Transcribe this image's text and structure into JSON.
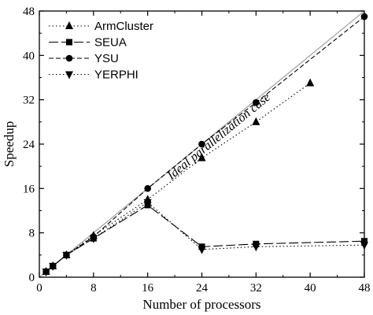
{
  "chart_data": {
    "type": "line",
    "xlabel": "Number of processors",
    "ylabel": "Speedup",
    "xlim": [
      0,
      48
    ],
    "ylim": [
      0,
      48
    ],
    "xticks": [
      0,
      8,
      16,
      24,
      32,
      40,
      48
    ],
    "yticks": [
      0,
      8,
      16,
      24,
      32,
      40,
      48
    ],
    "grid": false,
    "legend_position": "top-left",
    "annotation": "Ideal parallelization case",
    "ideal_line": {
      "x": [
        0,
        48
      ],
      "y": [
        0,
        48
      ],
      "color": "#aaaaaa"
    },
    "series": [
      {
        "name": "ArmCluster",
        "marker": "triangle-up",
        "dash": "dotted",
        "x": [
          1,
          2,
          4,
          8,
          16,
          24,
          32,
          40
        ],
        "y": [
          1,
          2,
          4,
          7.5,
          14,
          21.5,
          28,
          35
        ]
      },
      {
        "name": "SEUA",
        "marker": "square",
        "dash": "long-dash",
        "x": [
          1,
          2,
          4,
          8,
          16,
          24,
          32,
          48
        ],
        "y": [
          1,
          2,
          4,
          7,
          13,
          5.5,
          6,
          6.5
        ]
      },
      {
        "name": "YSU",
        "marker": "circle",
        "dash": "dashed",
        "x": [
          1,
          2,
          4,
          8,
          16,
          24,
          32,
          48
        ],
        "y": [
          1,
          2,
          4,
          7.3,
          16,
          24,
          31.5,
          47
        ]
      },
      {
        "name": "YERPHI",
        "marker": "triangle-down",
        "dash": "dotted",
        "x": [
          1,
          2,
          4,
          8,
          16,
          24,
          32,
          48
        ],
        "y": [
          1,
          2,
          4,
          7,
          13.5,
          5,
          5.5,
          5.8
        ]
      }
    ]
  }
}
